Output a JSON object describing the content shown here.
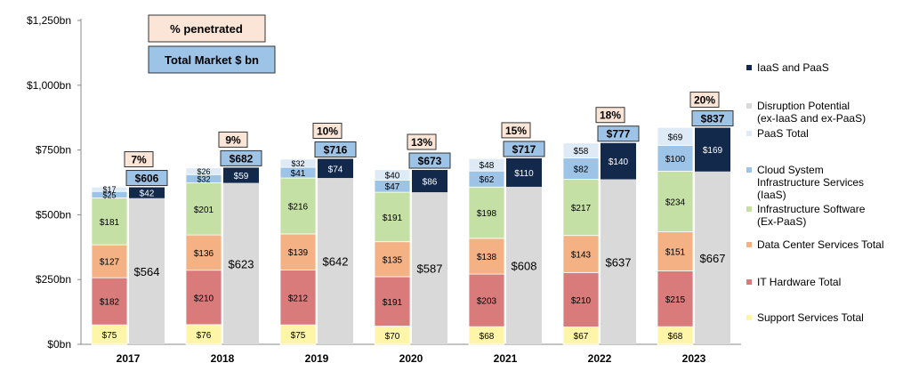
{
  "chart_data": {
    "type": "bar",
    "stacked": true,
    "categories": [
      "2017",
      "2018",
      "2019",
      "2020",
      "2021",
      "2022",
      "2023"
    ],
    "y_tick_labels": [
      "$0bn",
      "$250bn",
      "$500bn",
      "$750bn",
      "$1,000bn",
      "$1,250bn"
    ],
    "ylim": [
      0,
      1250
    ],
    "grid": false,
    "legend_position": "right",
    "header_boxes": {
      "penetrated_label": "% penetrated",
      "total_label": "Total Market $ bn"
    },
    "segment_series": [
      {
        "name": "Support Services Total",
        "color": "#fff5a8",
        "values": [
          75,
          76,
          75,
          70,
          68,
          67,
          68
        ],
        "labels": [
          "$75",
          "$76",
          "$75",
          "$70",
          "$68",
          "$67",
          "$68"
        ]
      },
      {
        "name": "IT Hardware Total",
        "color": "#d97b7b",
        "values": [
          182,
          210,
          212,
          191,
          203,
          210,
          215
        ],
        "labels": [
          "$182",
          "$210",
          "$212",
          "$191",
          "$203",
          "$210",
          "$215"
        ]
      },
      {
        "name": "Data Center Services Total",
        "color": "#f4b183",
        "values": [
          127,
          136,
          139,
          135,
          138,
          143,
          151
        ],
        "labels": [
          "$127",
          "$136",
          "$139",
          "$135",
          "$138",
          "$143",
          "$151"
        ]
      },
      {
        "name": "Infrastructure Software (Ex-PaaS)",
        "color": "#c5e0a5",
        "values": [
          181,
          201,
          216,
          191,
          198,
          217,
          234
        ],
        "labels": [
          "$181",
          "$201",
          "$216",
          "$191",
          "$198",
          "$217",
          "$234"
        ]
      },
      {
        "name": "Cloud System Infrastructure Services (IaaS)",
        "color": "#9dc3e6",
        "values": [
          25,
          32,
          41,
          47,
          62,
          82,
          100
        ],
        "labels": [
          "$25",
          "$32",
          "$41",
          "$47",
          "$62",
          "$82",
          "$100"
        ]
      },
      {
        "name": "PaaS Total",
        "color": "#deebf7",
        "values": [
          17,
          26,
          32,
          40,
          48,
          58,
          69
        ],
        "labels": [
          "$17",
          "$26",
          "$32",
          "$40",
          "$48",
          "$58",
          "$69"
        ]
      }
    ],
    "disruption_potential": {
      "name": "Disruption Potential (ex-IaaS and ex-PaaS)",
      "color": "#d9d9d9",
      "values": [
        564,
        623,
        642,
        587,
        608,
        637,
        667
      ],
      "labels": [
        "$564",
        "$623",
        "$642",
        "$587",
        "$608",
        "$637",
        "$667"
      ]
    },
    "iaas_paas": {
      "name": "IaaS and PaaS",
      "color": "#13294b",
      "values": [
        42,
        59,
        74,
        86,
        110,
        140,
        169
      ],
      "labels": [
        "$42",
        "$59",
        "$74",
        "$86",
        "$110",
        "$140",
        "$169"
      ]
    },
    "totals": {
      "values": [
        606,
        682,
        716,
        673,
        717,
        777,
        837
      ],
      "labels": [
        "$606",
        "$682",
        "$716",
        "$673",
        "$717",
        "$777",
        "$837"
      ]
    },
    "penetration": {
      "values": [
        7,
        9,
        10,
        13,
        15,
        18,
        20
      ],
      "labels": [
        "7%",
        "9%",
        "10%",
        "13%",
        "15%",
        "18%",
        "20%"
      ]
    },
    "legend": [
      {
        "line1": "IaaS and PaaS",
        "line2": "",
        "line3": "",
        "color": "#13294b"
      },
      {
        "line1": "Disruption Potential",
        "line2": "(ex-IaaS and ex-PaaS)",
        "line3": "",
        "color": "#d9d9d9"
      },
      {
        "line1": "PaaS Total",
        "line2": "",
        "line3": "",
        "color": "#deebf7"
      },
      {
        "line1": "Cloud System",
        "line2": "Infrastructure Services",
        "line3": "(IaaS)",
        "color": "#9dc3e6"
      },
      {
        "line1": "Infrastructure Software",
        "line2": "(Ex-PaaS)",
        "line3": "",
        "color": "#c5e0a5"
      },
      {
        "line1": "Data Center Services Total",
        "line2": "",
        "line3": "",
        "color": "#f4b183"
      },
      {
        "line1": "IT Hardware Total",
        "line2": "",
        "line3": "",
        "color": "#d97b7b"
      },
      {
        "line1": "Support Services Total",
        "line2": "",
        "line3": "",
        "color": "#fff5a8"
      }
    ]
  }
}
